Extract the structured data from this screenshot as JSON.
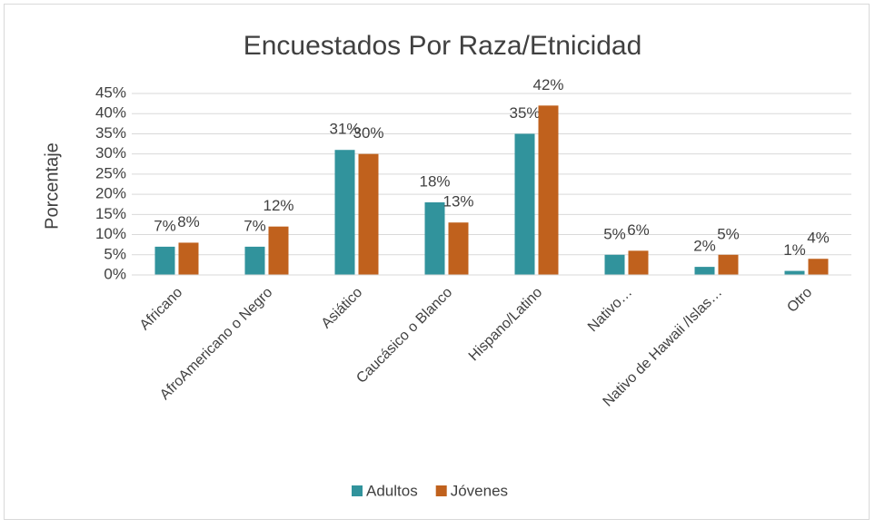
{
  "chart_data": {
    "type": "bar",
    "title": "Encuestados Por Raza/Etnicidad",
    "y_label": "Porcentaje",
    "categories": [
      "Africano",
      "AfroAmericano o Negro",
      "Asiático",
      "Caucásico o Blanco",
      "Hispano/Latino",
      "Nativo…",
      "Nativo de Hawaii /Islas…",
      "Otro"
    ],
    "series": [
      {
        "name": "Adultos",
        "color": "#31939c",
        "values": [
          7,
          7,
          31,
          18,
          35,
          5,
          2,
          1
        ],
        "value_labels": [
          "7%",
          "7%",
          "31%",
          "18%",
          "35%",
          "5%",
          "2%",
          "1%"
        ]
      },
      {
        "name": "Jóvenes",
        "color": "#c0611d",
        "values": [
          8,
          12,
          30,
          13,
          42,
          6,
          5,
          4
        ],
        "value_labels": [
          "8%",
          "12%",
          "30%",
          "13%",
          "42%",
          "6%",
          "5%",
          "4%"
        ]
      }
    ],
    "ylim": [
      0,
      45
    ],
    "yticks": [
      {
        "value": 0,
        "label": "0%"
      },
      {
        "value": 5,
        "label": "5%"
      },
      {
        "value": 10,
        "label": "10%"
      },
      {
        "value": 15,
        "label": "15%"
      },
      {
        "value": 20,
        "label": "20%"
      },
      {
        "value": 25,
        "label": "25%"
      },
      {
        "value": 30,
        "label": "30%"
      },
      {
        "value": 35,
        "label": "35%"
      },
      {
        "value": 40,
        "label": "40%"
      },
      {
        "value": 45,
        "label": "45%"
      }
    ],
    "grid": true,
    "legend": "bottom"
  }
}
